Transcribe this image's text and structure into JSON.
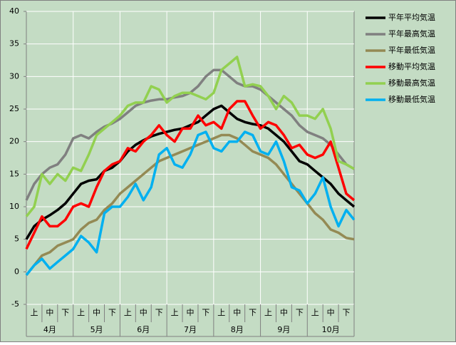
{
  "chart_data": {
    "type": "line",
    "months": [
      {
        "label": "4月",
        "dekads": [
          "上",
          "中",
          "下"
        ]
      },
      {
        "label": "5月",
        "dekads": [
          "上",
          "中",
          "下"
        ]
      },
      {
        "label": "6月",
        "dekads": [
          "上",
          "中",
          "下"
        ]
      },
      {
        "label": "7月",
        "dekads": [
          "上",
          "中",
          "下"
        ]
      },
      {
        "label": "8月",
        "dekads": [
          "上",
          "中",
          "下"
        ]
      },
      {
        "label": "9月",
        "dekads": [
          "上",
          "中",
          "下"
        ]
      },
      {
        "label": "10月",
        "dekads": [
          "上",
          "中",
          "下"
        ]
      }
    ],
    "ylim": [
      -5,
      40
    ],
    "yticks": [
      -5,
      0,
      5,
      10,
      15,
      20,
      25,
      30,
      35,
      40
    ],
    "grid": true,
    "series": [
      {
        "name": "平年平均気温",
        "color": "#000000",
        "values": [
          5,
          7,
          8,
          8.7,
          9.5,
          10.5,
          12,
          13.5,
          14,
          14.2,
          15.5,
          16,
          17,
          18.5,
          19.5,
          20.2,
          20.8,
          21.2,
          21.5,
          21.8,
          22,
          22.5,
          23,
          24,
          25,
          25.5,
          24.5,
          23.5,
          23,
          22.7,
          22.5,
          22,
          21,
          20,
          18.5,
          17,
          16.5,
          15.5,
          14.5,
          13.5,
          12,
          11,
          10
        ]
      },
      {
        "name": "平年最高気温",
        "color": "#808080",
        "values": [
          11,
          13.5,
          15,
          16,
          16.5,
          18,
          20.5,
          21,
          20.5,
          21.5,
          22.3,
          22.8,
          23.5,
          24.5,
          25.5,
          26,
          26.3,
          26.5,
          26.5,
          26.8,
          27,
          27.5,
          28.5,
          30,
          31,
          31,
          30,
          29,
          28.5,
          28.5,
          28,
          27,
          26,
          25,
          24,
          22.5,
          21.5,
          21,
          20.5,
          19.5,
          18,
          16.5,
          15.8
        ]
      },
      {
        "name": "平年最低気温",
        "color": "#948a54",
        "values": [
          -0.5,
          1,
          2.5,
          3,
          4,
          4.5,
          5,
          6.5,
          7.5,
          8,
          9.5,
          10.5,
          12,
          13,
          14,
          15,
          16,
          17,
          17.5,
          18,
          18.5,
          19,
          19.5,
          20,
          20.5,
          21,
          21,
          20.5,
          19.5,
          18.5,
          18,
          17.5,
          16.5,
          15,
          13.5,
          12,
          10.5,
          9,
          8,
          6.5,
          6,
          5.2,
          5
        ]
      },
      {
        "name": "移動平均気温",
        "color": "#ff0000",
        "values": [
          3.5,
          6,
          8.5,
          7,
          7,
          8,
          10,
          10.5,
          10,
          13,
          15.5,
          16.5,
          17,
          19,
          18.5,
          20,
          21,
          22.5,
          21,
          20,
          22,
          22,
          24,
          22.5,
          23,
          22,
          25,
          26.2,
          26.2,
          24,
          22,
          23,
          22.5,
          21,
          19,
          19.5,
          18,
          17.5,
          18,
          20,
          16,
          12,
          11
        ]
      },
      {
        "name": "移動最高気温",
        "color": "#92d050",
        "values": [
          8.5,
          10,
          15,
          13.5,
          15,
          14,
          16,
          15.5,
          18,
          21,
          22,
          23,
          24,
          25.5,
          26,
          26,
          28.5,
          28,
          26,
          27,
          27.5,
          27.5,
          27,
          26.5,
          27.5,
          31,
          32,
          33,
          28.5,
          28.8,
          28.5,
          27,
          25,
          27,
          26,
          24,
          24,
          23.5,
          25,
          22,
          17,
          16.5,
          15.8
        ]
      },
      {
        "name": "移動最低気温",
        "color": "#00b0f0",
        "values": [
          -0.5,
          1,
          2,
          0.5,
          1.5,
          2.5,
          3.5,
          5.5,
          4.5,
          3,
          9,
          10,
          10,
          11.5,
          13.5,
          11,
          13,
          18,
          19,
          16.5,
          16,
          18,
          21,
          21.5,
          19,
          18.5,
          20,
          20,
          21.5,
          21,
          18.5,
          18,
          20,
          17,
          13,
          12.5,
          10.5,
          12,
          14.5,
          10,
          7,
          9.5,
          8
        ]
      }
    ]
  }
}
